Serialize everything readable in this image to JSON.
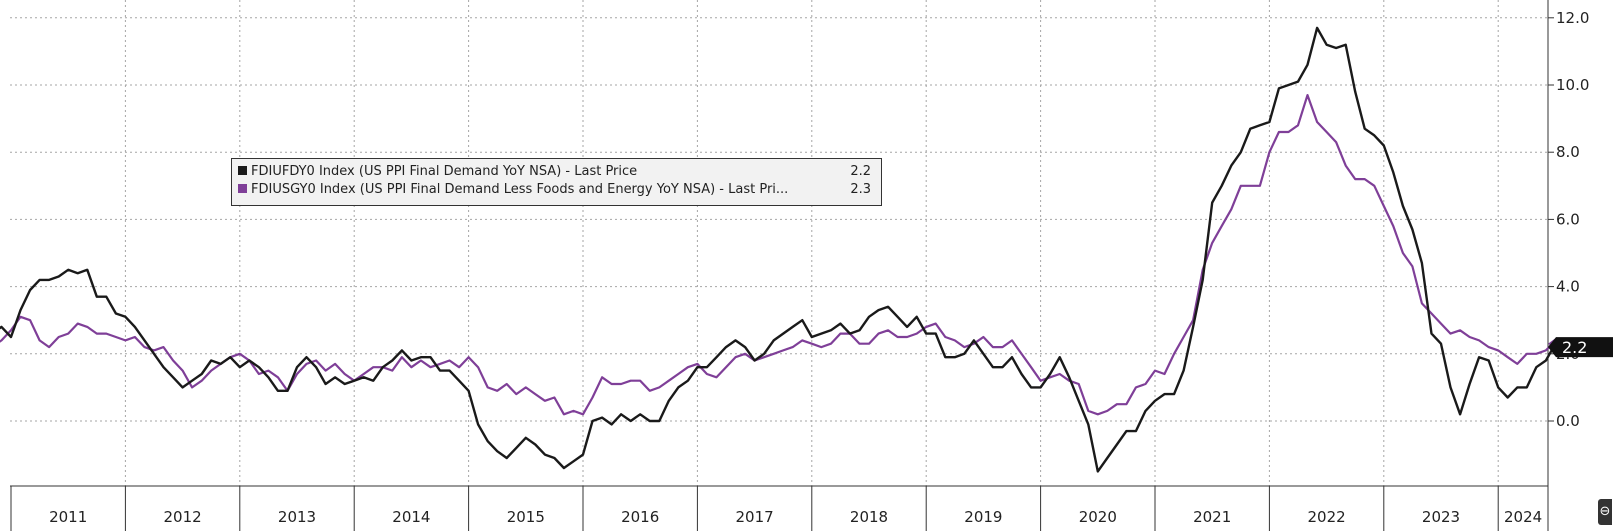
{
  "chart_data": {
    "type": "line",
    "x_start": "2010-11",
    "x_step": "month",
    "ylim": [
      -2.0,
      12.5
    ],
    "yticks": [
      0.0,
      2.0,
      4.0,
      6.0,
      8.0,
      10.0,
      12.0
    ],
    "ytick_labels": [
      "0.0",
      "2.0",
      "4.0",
      "6.0",
      "8.0",
      "10.0",
      "12.0"
    ],
    "x_labels": [
      "2011",
      "2012",
      "2013",
      "2014",
      "2015",
      "2016",
      "2017",
      "2018",
      "2019",
      "2020",
      "2021",
      "2022",
      "2023",
      "2024"
    ],
    "grid": true,
    "legend_position": "upper-left",
    "last_value_label": "2.2",
    "series": [
      {
        "name": "FDIUFDY0 Index (US PPI Final Demand YoY NSA) - Last Price",
        "last_value": "2.2",
        "color": "#1a1a1a",
        "values": [
          2.6,
          2.8,
          2.5,
          3.3,
          3.9,
          4.2,
          4.2,
          4.3,
          4.5,
          4.4,
          4.5,
          3.7,
          3.7,
          3.2,
          3.1,
          2.8,
          2.4,
          2.0,
          1.6,
          1.3,
          1.0,
          1.2,
          1.4,
          1.8,
          1.7,
          1.9,
          1.6,
          1.8,
          1.6,
          1.3,
          0.9,
          0.9,
          1.6,
          1.9,
          1.6,
          1.1,
          1.3,
          1.1,
          1.2,
          1.3,
          1.2,
          1.6,
          1.8,
          2.1,
          1.8,
          1.9,
          1.9,
          1.5,
          1.5,
          1.2,
          0.9,
          -0.1,
          -0.6,
          -0.9,
          -1.1,
          -0.8,
          -0.5,
          -0.7,
          -1.0,
          -1.1,
          -1.4,
          -1.2,
          -1.0,
          0.0,
          0.1,
          -0.1,
          0.2,
          0.0,
          0.2,
          0.0,
          0.0,
          0.6,
          1.0,
          1.2,
          1.6,
          1.6,
          1.9,
          2.2,
          2.4,
          2.2,
          1.8,
          2.0,
          2.4,
          2.6,
          2.8,
          3.0,
          2.5,
          2.6,
          2.7,
          2.9,
          2.6,
          2.7,
          3.1,
          3.3,
          3.4,
          3.1,
          2.8,
          3.1,
          2.6,
          2.6,
          1.9,
          1.9,
          2.0,
          2.4,
          2.0,
          1.6,
          1.6,
          1.9,
          1.4,
          1.0,
          1.0,
          1.4,
          1.9,
          1.3,
          0.6,
          -0.1,
          -1.5,
          -1.1,
          -0.7,
          -0.3,
          -0.3,
          0.3,
          0.6,
          0.8,
          0.8,
          1.5,
          2.8,
          4.2,
          6.5,
          7.0,
          7.6,
          8.0,
          8.7,
          8.8,
          8.9,
          9.9,
          10.0,
          10.1,
          10.6,
          11.7,
          11.2,
          11.1,
          11.2,
          9.8,
          8.7,
          8.5,
          8.2,
          7.4,
          6.4,
          5.7,
          4.7,
          2.6,
          2.3,
          1.0,
          0.2,
          1.1,
          1.9,
          1.8,
          1.0,
          0.7,
          1.0,
          1.0,
          1.6,
          1.8,
          2.3,
          2.2
        ]
      },
      {
        "name": "FDIUSGY0 Index (US PPI Final Demand Less Foods and Energy YoY NSA) - Last Pri...",
        "last_value": "2.3",
        "color": "#7f3f98",
        "values": [
          2.2,
          2.4,
          2.7,
          3.1,
          3.0,
          2.4,
          2.2,
          2.5,
          2.6,
          2.9,
          2.8,
          2.6,
          2.6,
          2.5,
          2.4,
          2.5,
          2.2,
          2.1,
          2.2,
          1.8,
          1.5,
          1.0,
          1.2,
          1.5,
          1.7,
          1.9,
          2.0,
          1.8,
          1.4,
          1.5,
          1.3,
          0.9,
          1.4,
          1.7,
          1.8,
          1.5,
          1.7,
          1.4,
          1.2,
          1.4,
          1.6,
          1.6,
          1.5,
          1.9,
          1.6,
          1.8,
          1.6,
          1.7,
          1.8,
          1.6,
          1.9,
          1.6,
          1.0,
          0.9,
          1.1,
          0.8,
          1.0,
          0.8,
          0.6,
          0.7,
          0.2,
          0.3,
          0.2,
          0.7,
          1.3,
          1.1,
          1.1,
          1.2,
          1.2,
          0.9,
          1.0,
          1.2,
          1.4,
          1.6,
          1.7,
          1.4,
          1.3,
          1.6,
          1.9,
          2.0,
          1.8,
          1.9,
          2.0,
          2.1,
          2.2,
          2.4,
          2.3,
          2.2,
          2.3,
          2.6,
          2.6,
          2.3,
          2.3,
          2.6,
          2.7,
          2.5,
          2.5,
          2.6,
          2.8,
          2.9,
          2.5,
          2.4,
          2.2,
          2.3,
          2.5,
          2.2,
          2.2,
          2.4,
          2.0,
          1.6,
          1.2,
          1.3,
          1.4,
          1.2,
          1.1,
          0.3,
          0.2,
          0.3,
          0.5,
          0.5,
          1.0,
          1.1,
          1.5,
          1.4,
          2.0,
          2.5,
          3.0,
          4.5,
          5.3,
          5.8,
          6.3,
          7.0,
          7.0,
          7.0,
          8.0,
          8.6,
          8.6,
          8.8,
          9.7,
          8.9,
          8.6,
          8.3,
          7.6,
          7.2,
          7.2,
          7.0,
          6.4,
          5.8,
          5.0,
          4.6,
          3.5,
          3.2,
          2.9,
          2.6,
          2.7,
          2.5,
          2.4,
          2.2,
          2.1,
          1.9,
          1.7,
          2.0,
          2.0,
          2.1,
          2.4,
          2.3
        ]
      }
    ]
  },
  "corner_icon": "collapse-icon"
}
